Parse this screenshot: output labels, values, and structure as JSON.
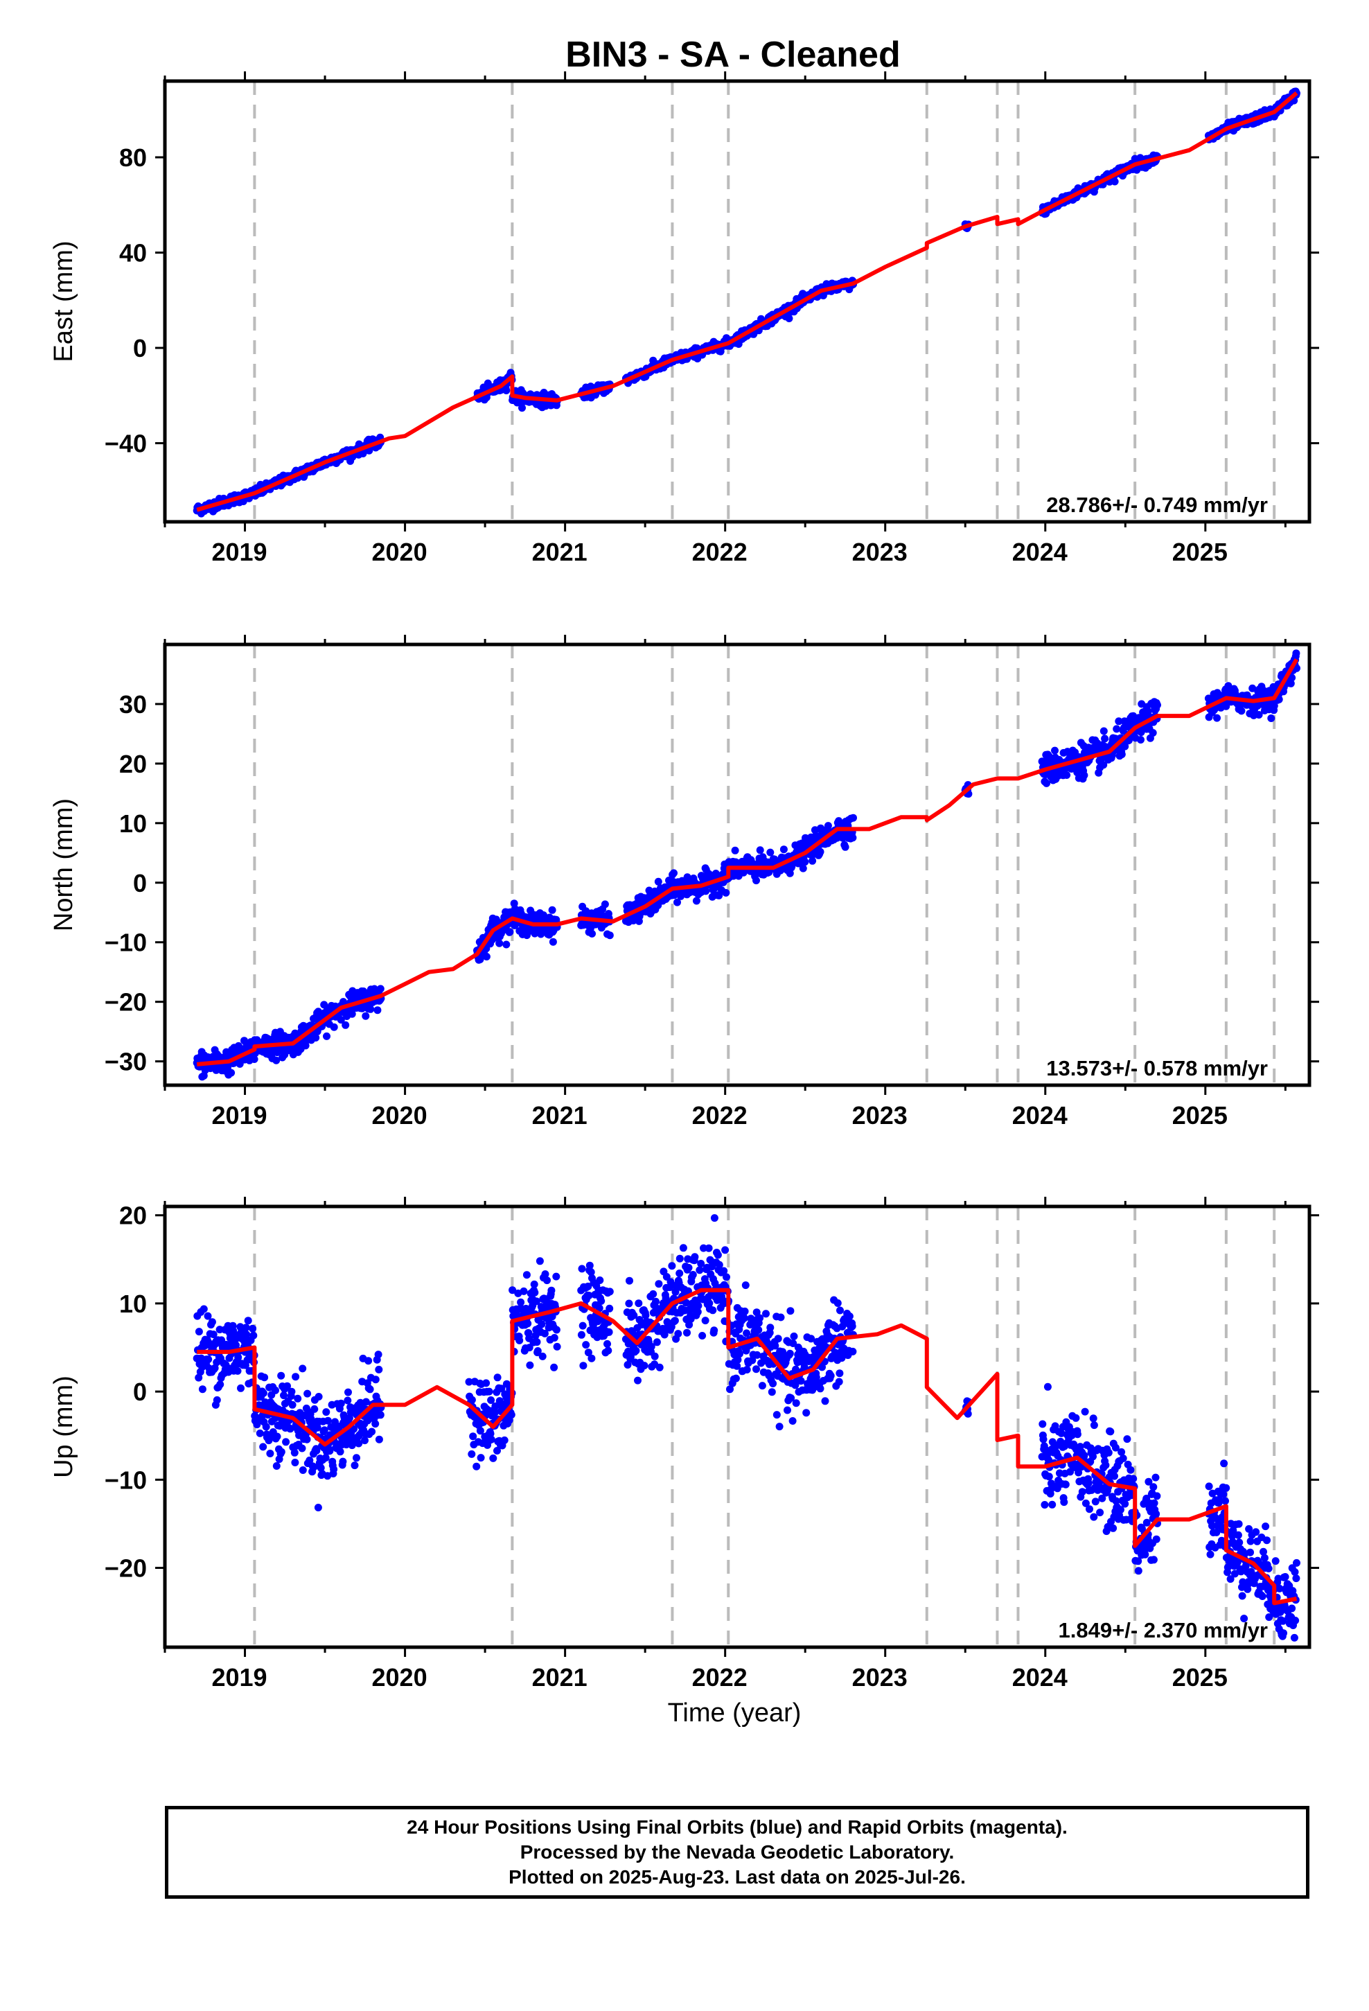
{
  "title": "BIN3  - SA - Cleaned",
  "xlabel": "Time (year)",
  "footer": {
    "line1": "24 Hour Positions Using Final Orbits (blue) and Rapid Orbits (magenta).",
    "line2": "Processed by the Nevada Geodetic Laboratory.",
    "line3": "Plotted on 2025-Aug-23. Last data on 2025-Jul-26."
  },
  "colors": {
    "data": "#0000ff",
    "model": "#ff0000",
    "events": "#bbbbbb"
  },
  "chart_data": [
    {
      "type": "scatter",
      "component": "East",
      "ylabel": "East (mm)",
      "rate_text": "28.786+/- 0.749 mm/yr",
      "xlim": [
        2018.5,
        2025.65
      ],
      "ylim": [
        -73,
        112
      ],
      "yticks": [
        -40,
        0,
        40,
        80
      ],
      "xticks": [
        2019,
        2020,
        2021,
        2022,
        2023,
        2024,
        2025
      ],
      "event_lines": [
        2019.06,
        2020.67,
        2021.67,
        2022.02,
        2023.26,
        2023.7,
        2023.83,
        2024.56,
        2025.13,
        2025.43
      ],
      "data_segments": [
        {
          "x0": 2018.7,
          "x1": 2019.85,
          "noise": 1.0
        },
        {
          "x0": 2020.45,
          "x1": 2020.69,
          "noise": 1.3
        },
        {
          "x0": 2020.69,
          "x1": 2020.95,
          "noise": 1.3
        },
        {
          "x0": 2021.1,
          "x1": 2021.28,
          "noise": 1.0
        },
        {
          "x0": 2021.38,
          "x1": 2022.8,
          "noise": 1.0
        },
        {
          "x0": 2023.5,
          "x1": 2023.52,
          "noise": 0.5
        },
        {
          "x0": 2023.98,
          "x1": 2024.7,
          "noise": 1.0
        },
        {
          "x0": 2025.02,
          "x1": 2025.57,
          "noise": 1.0
        }
      ],
      "model": [
        [
          2018.7,
          -68
        ],
        [
          2019.06,
          -61
        ],
        [
          2019.5,
          -48
        ],
        [
          2019.9,
          -38
        ],
        [
          2020.0,
          -37
        ],
        [
          2020.3,
          -25
        ],
        [
          2020.6,
          -16
        ],
        [
          2020.67,
          -12
        ],
        [
          2020.67,
          -20
        ],
        [
          2020.75,
          -21
        ],
        [
          2020.95,
          -22
        ],
        [
          2021.3,
          -16
        ],
        [
          2021.67,
          -5
        ],
        [
          2022.02,
          2
        ],
        [
          2022.6,
          24
        ],
        [
          2022.8,
          27
        ],
        [
          2023.0,
          34
        ],
        [
          2023.26,
          42
        ],
        [
          2023.26,
          44
        ],
        [
          2023.5,
          51
        ],
        [
          2023.7,
          55
        ],
        [
          2023.7,
          52
        ],
        [
          2023.83,
          54
        ],
        [
          2023.83,
          52
        ],
        [
          2024.0,
          58
        ],
        [
          2024.56,
          77
        ],
        [
          2024.9,
          83
        ],
        [
          2025.13,
          92
        ],
        [
          2025.43,
          99
        ],
        [
          2025.57,
          107
        ]
      ]
    },
    {
      "type": "scatter",
      "component": "North",
      "ylabel": "North (mm)",
      "rate_text": "13.573+/- 0.578 mm/yr",
      "xlim": [
        2018.5,
        2025.65
      ],
      "ylim": [
        -34,
        40
      ],
      "yticks": [
        -30,
        -20,
        -10,
        0,
        10,
        20,
        30
      ],
      "xticks": [
        2019,
        2020,
        2021,
        2022,
        2023,
        2024,
        2025
      ],
      "event_lines": [
        2019.06,
        2020.67,
        2021.67,
        2022.02,
        2023.26,
        2023.7,
        2023.83,
        2024.56,
        2025.13,
        2025.43
      ],
      "data_segments": [
        {
          "x0": 2018.7,
          "x1": 2019.85,
          "noise": 1.0
        },
        {
          "x0": 2020.45,
          "x1": 2020.95,
          "noise": 1.0
        },
        {
          "x0": 2021.1,
          "x1": 2021.28,
          "noise": 1.0
        },
        {
          "x0": 2021.38,
          "x1": 2022.8,
          "noise": 1.0
        },
        {
          "x0": 2023.5,
          "x1": 2023.52,
          "noise": 0.5
        },
        {
          "x0": 2023.98,
          "x1": 2024.7,
          "noise": 1.3
        },
        {
          "x0": 2025.02,
          "x1": 2025.57,
          "noise": 1.0
        }
      ],
      "model": [
        [
          2018.7,
          -30.5
        ],
        [
          2018.9,
          -30
        ],
        [
          2019.06,
          -28
        ],
        [
          2019.06,
          -27.5
        ],
        [
          2019.3,
          -27
        ],
        [
          2019.6,
          -21
        ],
        [
          2019.85,
          -19
        ],
        [
          2020.0,
          -17
        ],
        [
          2020.15,
          -15
        ],
        [
          2020.3,
          -14.5
        ],
        [
          2020.45,
          -12
        ],
        [
          2020.55,
          -8
        ],
        [
          2020.67,
          -6
        ],
        [
          2020.8,
          -7
        ],
        [
          2020.95,
          -7
        ],
        [
          2021.1,
          -6
        ],
        [
          2021.3,
          -6.5
        ],
        [
          2021.5,
          -4
        ],
        [
          2021.67,
          -1
        ],
        [
          2021.85,
          -0.5
        ],
        [
          2022.02,
          1
        ],
        [
          2022.02,
          2.5
        ],
        [
          2022.3,
          2.5
        ],
        [
          2022.5,
          5
        ],
        [
          2022.7,
          9
        ],
        [
          2022.9,
          9
        ],
        [
          2023.1,
          11
        ],
        [
          2023.26,
          11
        ],
        [
          2023.26,
          10.5
        ],
        [
          2023.4,
          13
        ],
        [
          2023.55,
          16.5
        ],
        [
          2023.7,
          17.5
        ],
        [
          2023.83,
          17.5
        ],
        [
          2024.0,
          19
        ],
        [
          2024.2,
          20.5
        ],
        [
          2024.4,
          22
        ],
        [
          2024.56,
          26
        ],
        [
          2024.7,
          28
        ],
        [
          2024.9,
          28
        ],
        [
          2025.13,
          31
        ],
        [
          2025.3,
          30.5
        ],
        [
          2025.43,
          31
        ],
        [
          2025.57,
          37.5
        ]
      ]
    },
    {
      "type": "scatter",
      "component": "Up",
      "ylabel": "Up (mm)",
      "rate_text": "1.849+/- 2.370 mm/yr",
      "xlim": [
        2018.5,
        2025.65
      ],
      "ylim": [
        -29,
        21
      ],
      "yticks": [
        -20,
        -10,
        0,
        10,
        20
      ],
      "xticks": [
        2019,
        2020,
        2021,
        2022,
        2023,
        2024,
        2025
      ],
      "event_lines": [
        2019.06,
        2020.67,
        2021.67,
        2022.02,
        2023.26,
        2023.7,
        2023.83,
        2024.56,
        2025.13,
        2025.43
      ],
      "data_segments": [
        {
          "x0": 2018.7,
          "x1": 2019.85,
          "noise": 2.3
        },
        {
          "x0": 2020.4,
          "x1": 2020.95,
          "noise": 2.3
        },
        {
          "x0": 2021.1,
          "x1": 2021.28,
          "noise": 2.3
        },
        {
          "x0": 2021.38,
          "x1": 2022.8,
          "noise": 2.3
        },
        {
          "x0": 2023.5,
          "x1": 2023.52,
          "noise": 0.8
        },
        {
          "x0": 2023.98,
          "x1": 2024.7,
          "noise": 2.5
        },
        {
          "x0": 2025.02,
          "x1": 2025.57,
          "noise": 2.2
        }
      ],
      "model": [
        [
          2018.7,
          4.5
        ],
        [
          2018.9,
          4.5
        ],
        [
          2019.06,
          5
        ],
        [
          2019.06,
          -2
        ],
        [
          2019.3,
          -3
        ],
        [
          2019.5,
          -6
        ],
        [
          2019.65,
          -4
        ],
        [
          2019.8,
          -1.5
        ],
        [
          2020.0,
          -1.5
        ],
        [
          2020.2,
          0.5
        ],
        [
          2020.4,
          -1.5
        ],
        [
          2020.55,
          -4
        ],
        [
          2020.67,
          -1.5
        ],
        [
          2020.67,
          8
        ],
        [
          2020.9,
          9
        ],
        [
          2021.1,
          10
        ],
        [
          2021.3,
          8
        ],
        [
          2021.45,
          5.5
        ],
        [
          2021.67,
          10
        ],
        [
          2021.85,
          11.5
        ],
        [
          2022.02,
          11.5
        ],
        [
          2022.02,
          5
        ],
        [
          2022.2,
          6
        ],
        [
          2022.4,
          1.5
        ],
        [
          2022.55,
          2.5
        ],
        [
          2022.7,
          6
        ],
        [
          2022.95,
          6.5
        ],
        [
          2023.1,
          7.5
        ],
        [
          2023.26,
          6
        ],
        [
          2023.26,
          0.5
        ],
        [
          2023.45,
          -3
        ],
        [
          2023.7,
          2
        ],
        [
          2023.7,
          -5.5
        ],
        [
          2023.83,
          -5
        ],
        [
          2023.83,
          -8.5
        ],
        [
          2024.0,
          -8.5
        ],
        [
          2024.2,
          -7.5
        ],
        [
          2024.4,
          -10.5
        ],
        [
          2024.56,
          -11
        ],
        [
          2024.56,
          -17.5
        ],
        [
          2024.7,
          -14.5
        ],
        [
          2024.9,
          -14.5
        ],
        [
          2025.13,
          -13
        ],
        [
          2025.13,
          -18
        ],
        [
          2025.3,
          -19.5
        ],
        [
          2025.43,
          -22
        ],
        [
          2025.43,
          -24
        ],
        [
          2025.57,
          -23.5
        ]
      ]
    }
  ]
}
